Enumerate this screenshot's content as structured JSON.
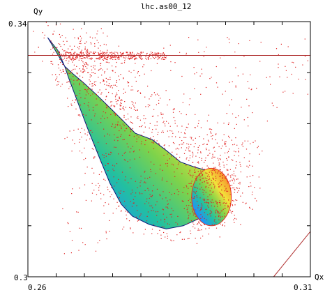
{
  "chart_data": {
    "type": "scatter",
    "title": "lhc.as00_12",
    "xlabel": "Qx",
    "ylabel": "Qy",
    "xlim": [
      0.26,
      0.31
    ],
    "ylim": [
      0.3,
      0.34
    ],
    "x_tick_labels": [
      {
        "value": 0.26,
        "label": "0.26"
      },
      {
        "value": 0.31,
        "label": "0.31"
      }
    ],
    "y_tick_labels": [
      {
        "value": 0.3,
        "label": "0.3"
      },
      {
        "value": 0.34,
        "label": "0.34"
      }
    ],
    "x_minor_ticks": [
      0.26,
      0.265,
      0.27,
      0.275,
      0.28,
      0.285,
      0.29,
      0.295,
      0.3,
      0.305,
      0.31
    ],
    "y_minor_ticks": [
      0.3,
      0.308,
      0.316,
      0.324,
      0.332,
      0.34
    ],
    "reference_lines": [
      {
        "kind": "horizontal",
        "y": 0.3347,
        "color": "#b03030"
      },
      {
        "kind": "diagonal",
        "from": [
          0.3035,
          0.3
        ],
        "to": [
          0.31,
          0.3071
        ],
        "color": "#b03030"
      }
    ],
    "footprint_boundary": [
      [
        0.2635,
        0.3375
      ],
      [
        0.2653,
        0.3355
      ],
      [
        0.2665,
        0.333
      ],
      [
        0.2672,
        0.3312
      ],
      [
        0.2705,
        0.3234
      ],
      [
        0.2725,
        0.319
      ],
      [
        0.2745,
        0.3147
      ],
      [
        0.2765,
        0.3114
      ],
      [
        0.2785,
        0.3095
      ],
      [
        0.2815,
        0.3082
      ],
      [
        0.2845,
        0.3075
      ],
      [
        0.2875,
        0.308
      ],
      [
        0.2905,
        0.3092
      ],
      [
        0.293,
        0.312
      ],
      [
        0.2945,
        0.3148
      ],
      [
        0.2945,
        0.316
      ],
      [
        0.2923,
        0.3165
      ],
      [
        0.2895,
        0.3172
      ],
      [
        0.287,
        0.318
      ],
      [
        0.2845,
        0.3198
      ],
      [
        0.282,
        0.3215
      ],
      [
        0.279,
        0.3225
      ],
      [
        0.2768,
        0.3245
      ],
      [
        0.2745,
        0.3265
      ],
      [
        0.2722,
        0.3285
      ],
      [
        0.27,
        0.3303
      ],
      [
        0.268,
        0.3318
      ],
      [
        0.2665,
        0.333
      ]
    ],
    "island": {
      "center": [
        0.2925,
        0.3125
      ],
      "radius_x": 0.0035,
      "radius_y": 0.0045
    },
    "color_scale": [
      "#0a1a7a",
      "#1e90ff",
      "#22c0a0",
      "#7fd34a",
      "#f2e23a",
      "#f5a030",
      "#e8301f"
    ],
    "scatter_color": "#e02020",
    "grid": false
  }
}
